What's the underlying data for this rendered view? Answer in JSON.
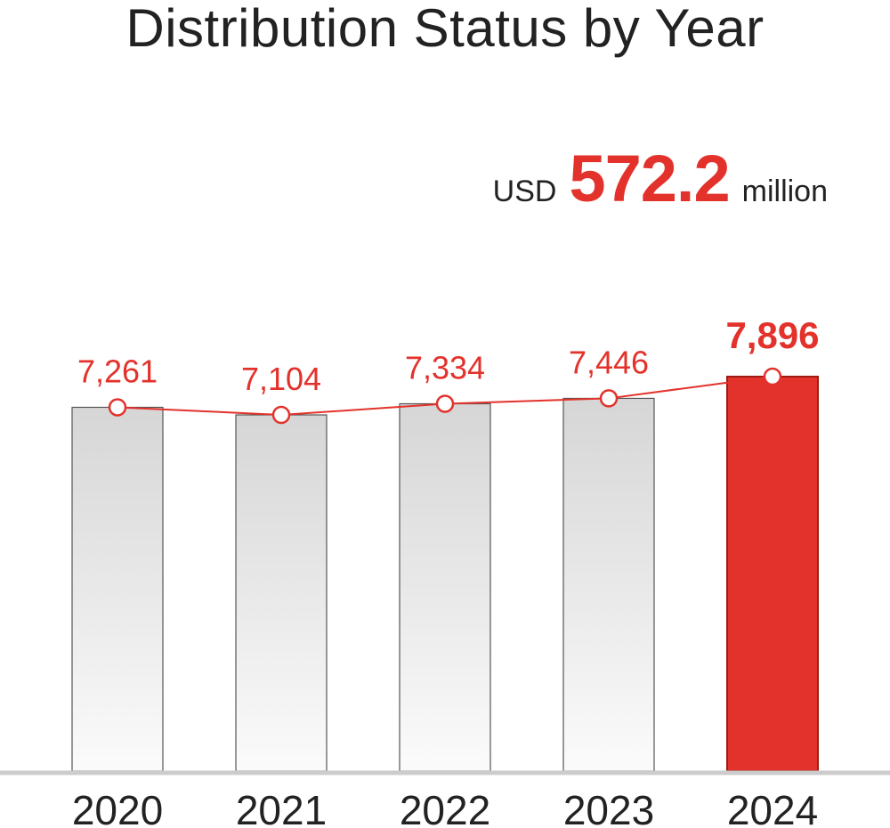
{
  "title": "Distribution Status by Year",
  "total": {
    "currency": "USD",
    "amount": "572.2",
    "unit": "million"
  },
  "colors": {
    "accent": "#e3322b",
    "bar_gray_top": "#d6d6d6",
    "bar_gray_bottom": "#fafafa",
    "axis": "#cccccc"
  },
  "chart_data": {
    "type": "bar",
    "categories": [
      "2020",
      "2021",
      "2022",
      "2023",
      "2024"
    ],
    "values": [
      7261,
      7104,
      7334,
      7446,
      7896
    ],
    "data_labels": [
      "7,261",
      "7,104",
      "7,334",
      "7,446",
      "7,896"
    ],
    "highlight_index": 4,
    "overlay": "line",
    "title": "Distribution Status by Year",
    "xlabel": "",
    "ylabel": "",
    "grid": false,
    "legend": "none"
  }
}
